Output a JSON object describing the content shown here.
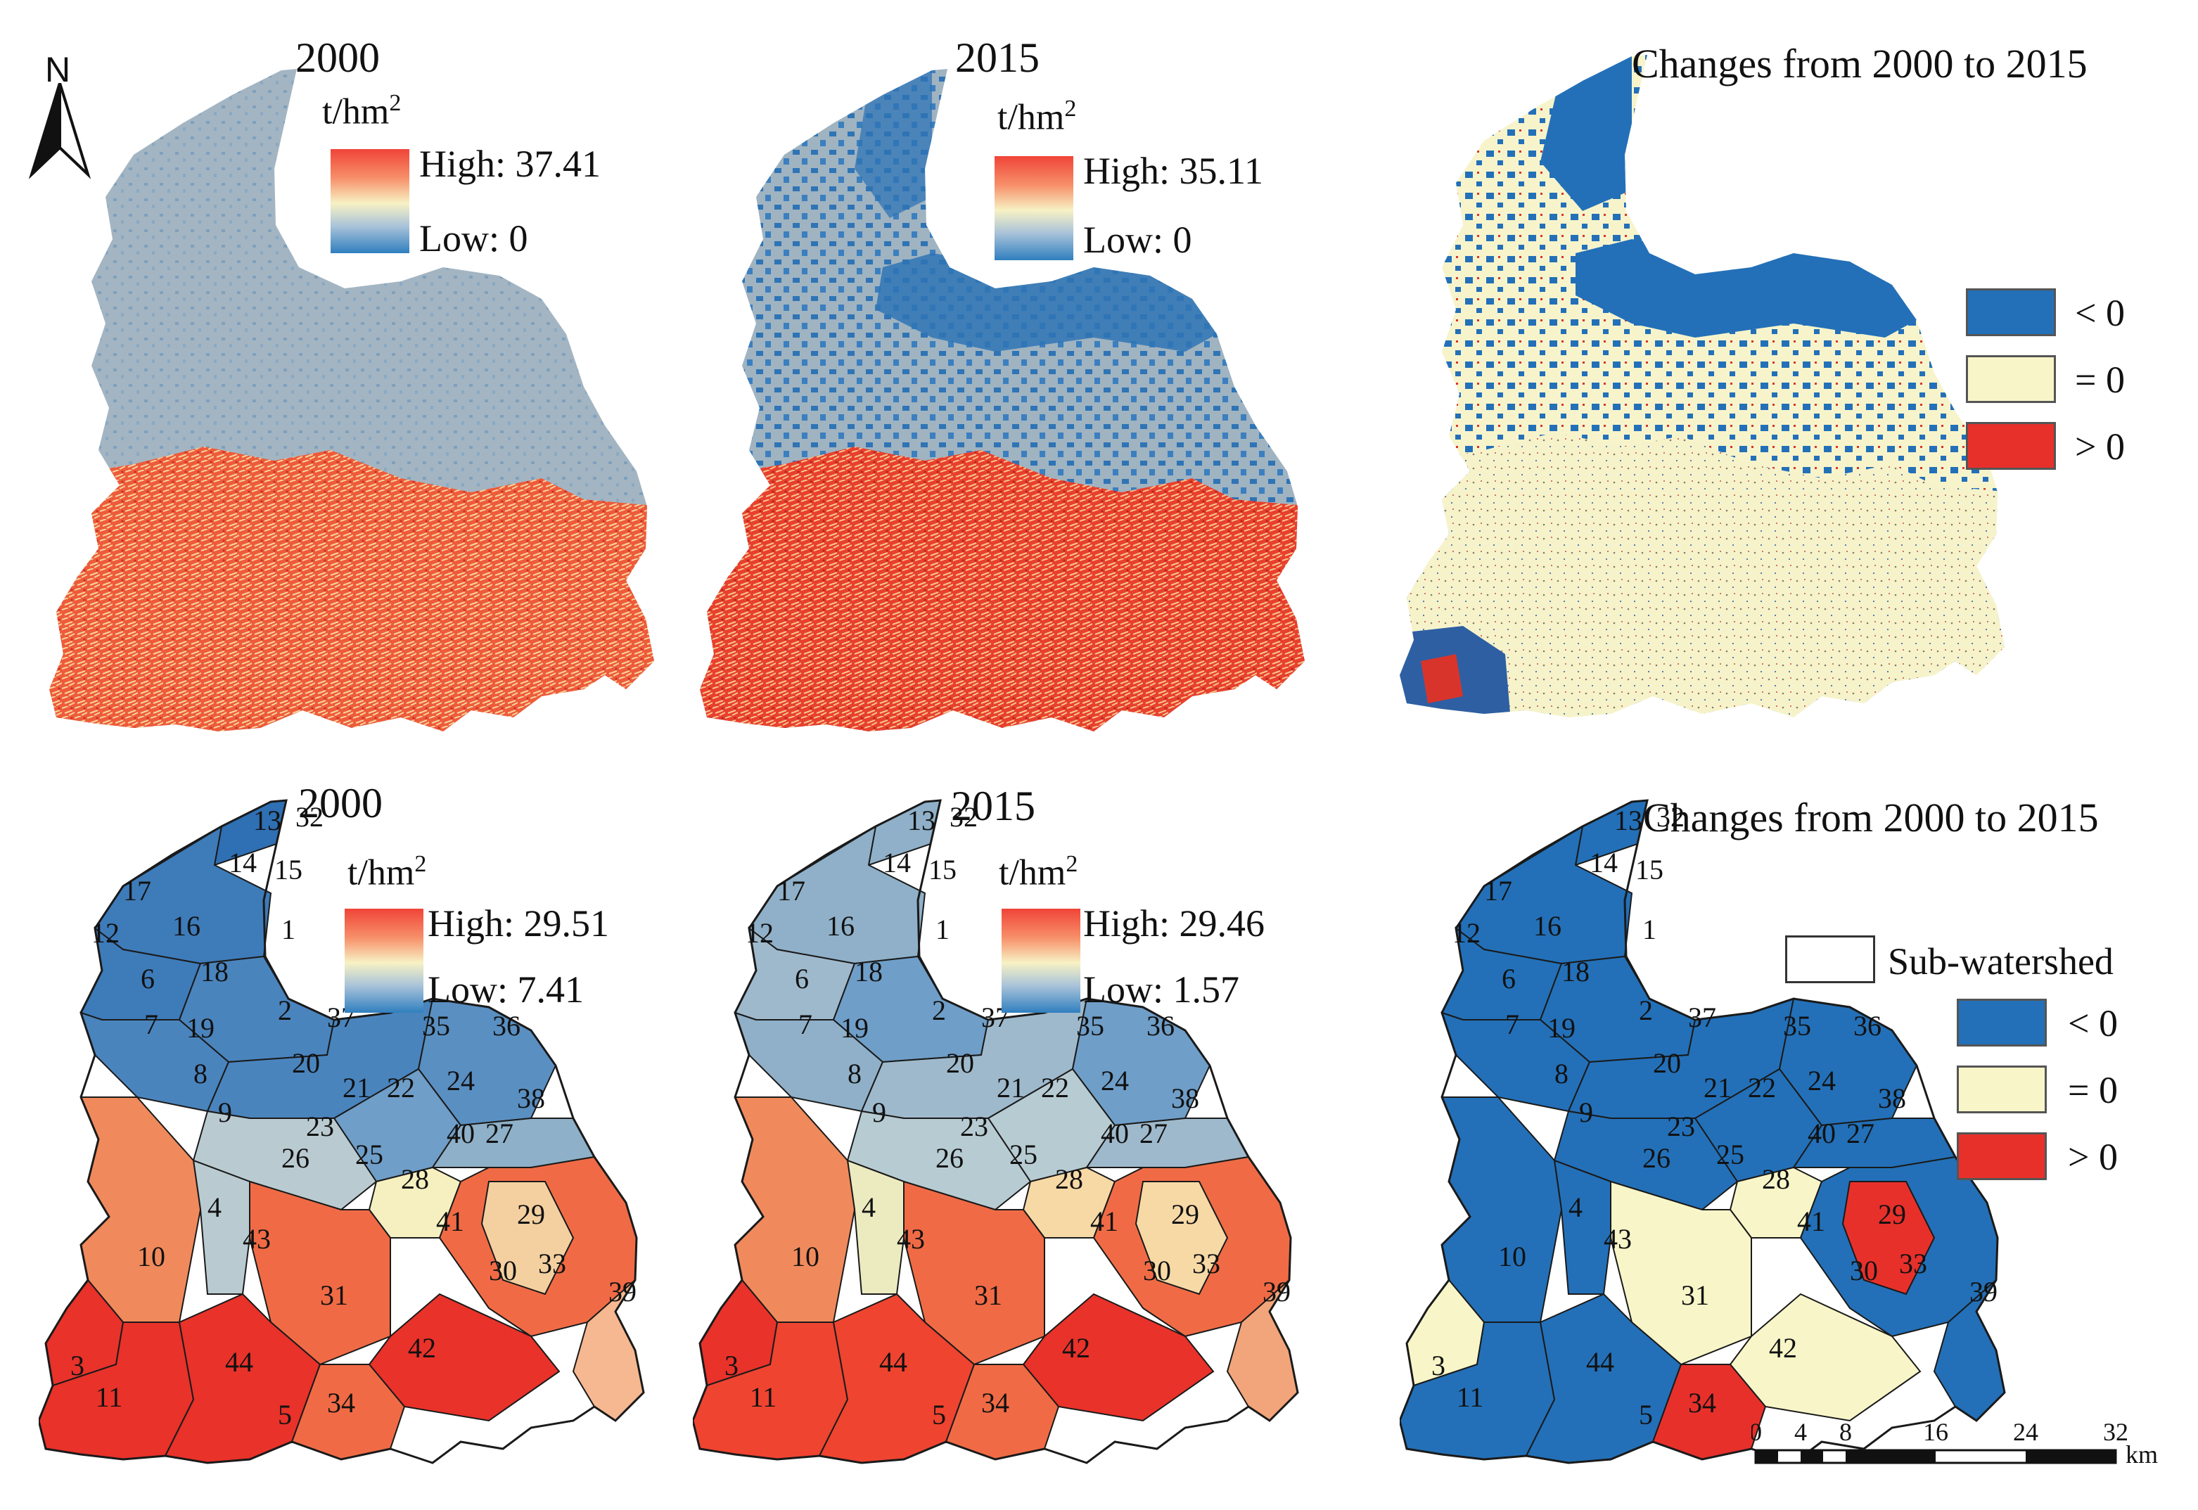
{
  "north_label": "N",
  "top": {
    "left": {
      "year": "2000",
      "unit_base": "t/hm",
      "unit_sup": "2",
      "high": "High: 37.41",
      "low": "Low: 0"
    },
    "middle": {
      "year": "2015",
      "unit_base": "t/hm",
      "unit_sup": "2",
      "high": "High: 35.11",
      "low": "Low: 0"
    },
    "right": {
      "title": "Changes from 2000 to 2015",
      "legend": [
        {
          "label": "< 0",
          "color": "#2370b8"
        },
        {
          "label": "= 0",
          "color": "#f8f6c8"
        },
        {
          "label": "> 0",
          "color": "#e8302b"
        }
      ]
    }
  },
  "bottom": {
    "left": {
      "year": "2000",
      "unit_base": "t/hm",
      "unit_sup": "2",
      "high": "High: 29.51",
      "low": "Low: 7.41"
    },
    "middle": {
      "year": "2015",
      "unit_base": "t/hm",
      "unit_sup": "2",
      "high": "High: 29.46",
      "low": "Low: 1.57"
    },
    "right": {
      "title": "Changes from 2000 to 2015",
      "subwatershed_label": "Sub-watershed",
      "legend": [
        {
          "label": "< 0",
          "color": "#2370b8"
        },
        {
          "label": "= 0",
          "color": "#f8f6c8"
        },
        {
          "label": "> 0",
          "color": "#e8302b"
        }
      ]
    }
  },
  "scale_bar": {
    "ticks": [
      "0",
      "4",
      "8",
      "16",
      "24",
      "32"
    ],
    "unit": "km"
  },
  "subwatershed_ids": [
    "1",
    "2",
    "3",
    "4",
    "5",
    "6",
    "7",
    "8",
    "9",
    "10",
    "11",
    "12",
    "13",
    "14",
    "15",
    "16",
    "17",
    "18",
    "19",
    "20",
    "21",
    "22",
    "23",
    "24",
    "25",
    "26",
    "27",
    "28",
    "29",
    "30",
    "31",
    "32",
    "33",
    "34",
    "35",
    "36",
    "37",
    "38",
    "39",
    "40",
    "41",
    "42",
    "43",
    "44"
  ],
  "colors": {
    "north_blue": "#2f74b5",
    "north_mid": "#9fb2c0",
    "south_red": "#ef5a3c",
    "change_neutral": "#f8f6c8"
  }
}
